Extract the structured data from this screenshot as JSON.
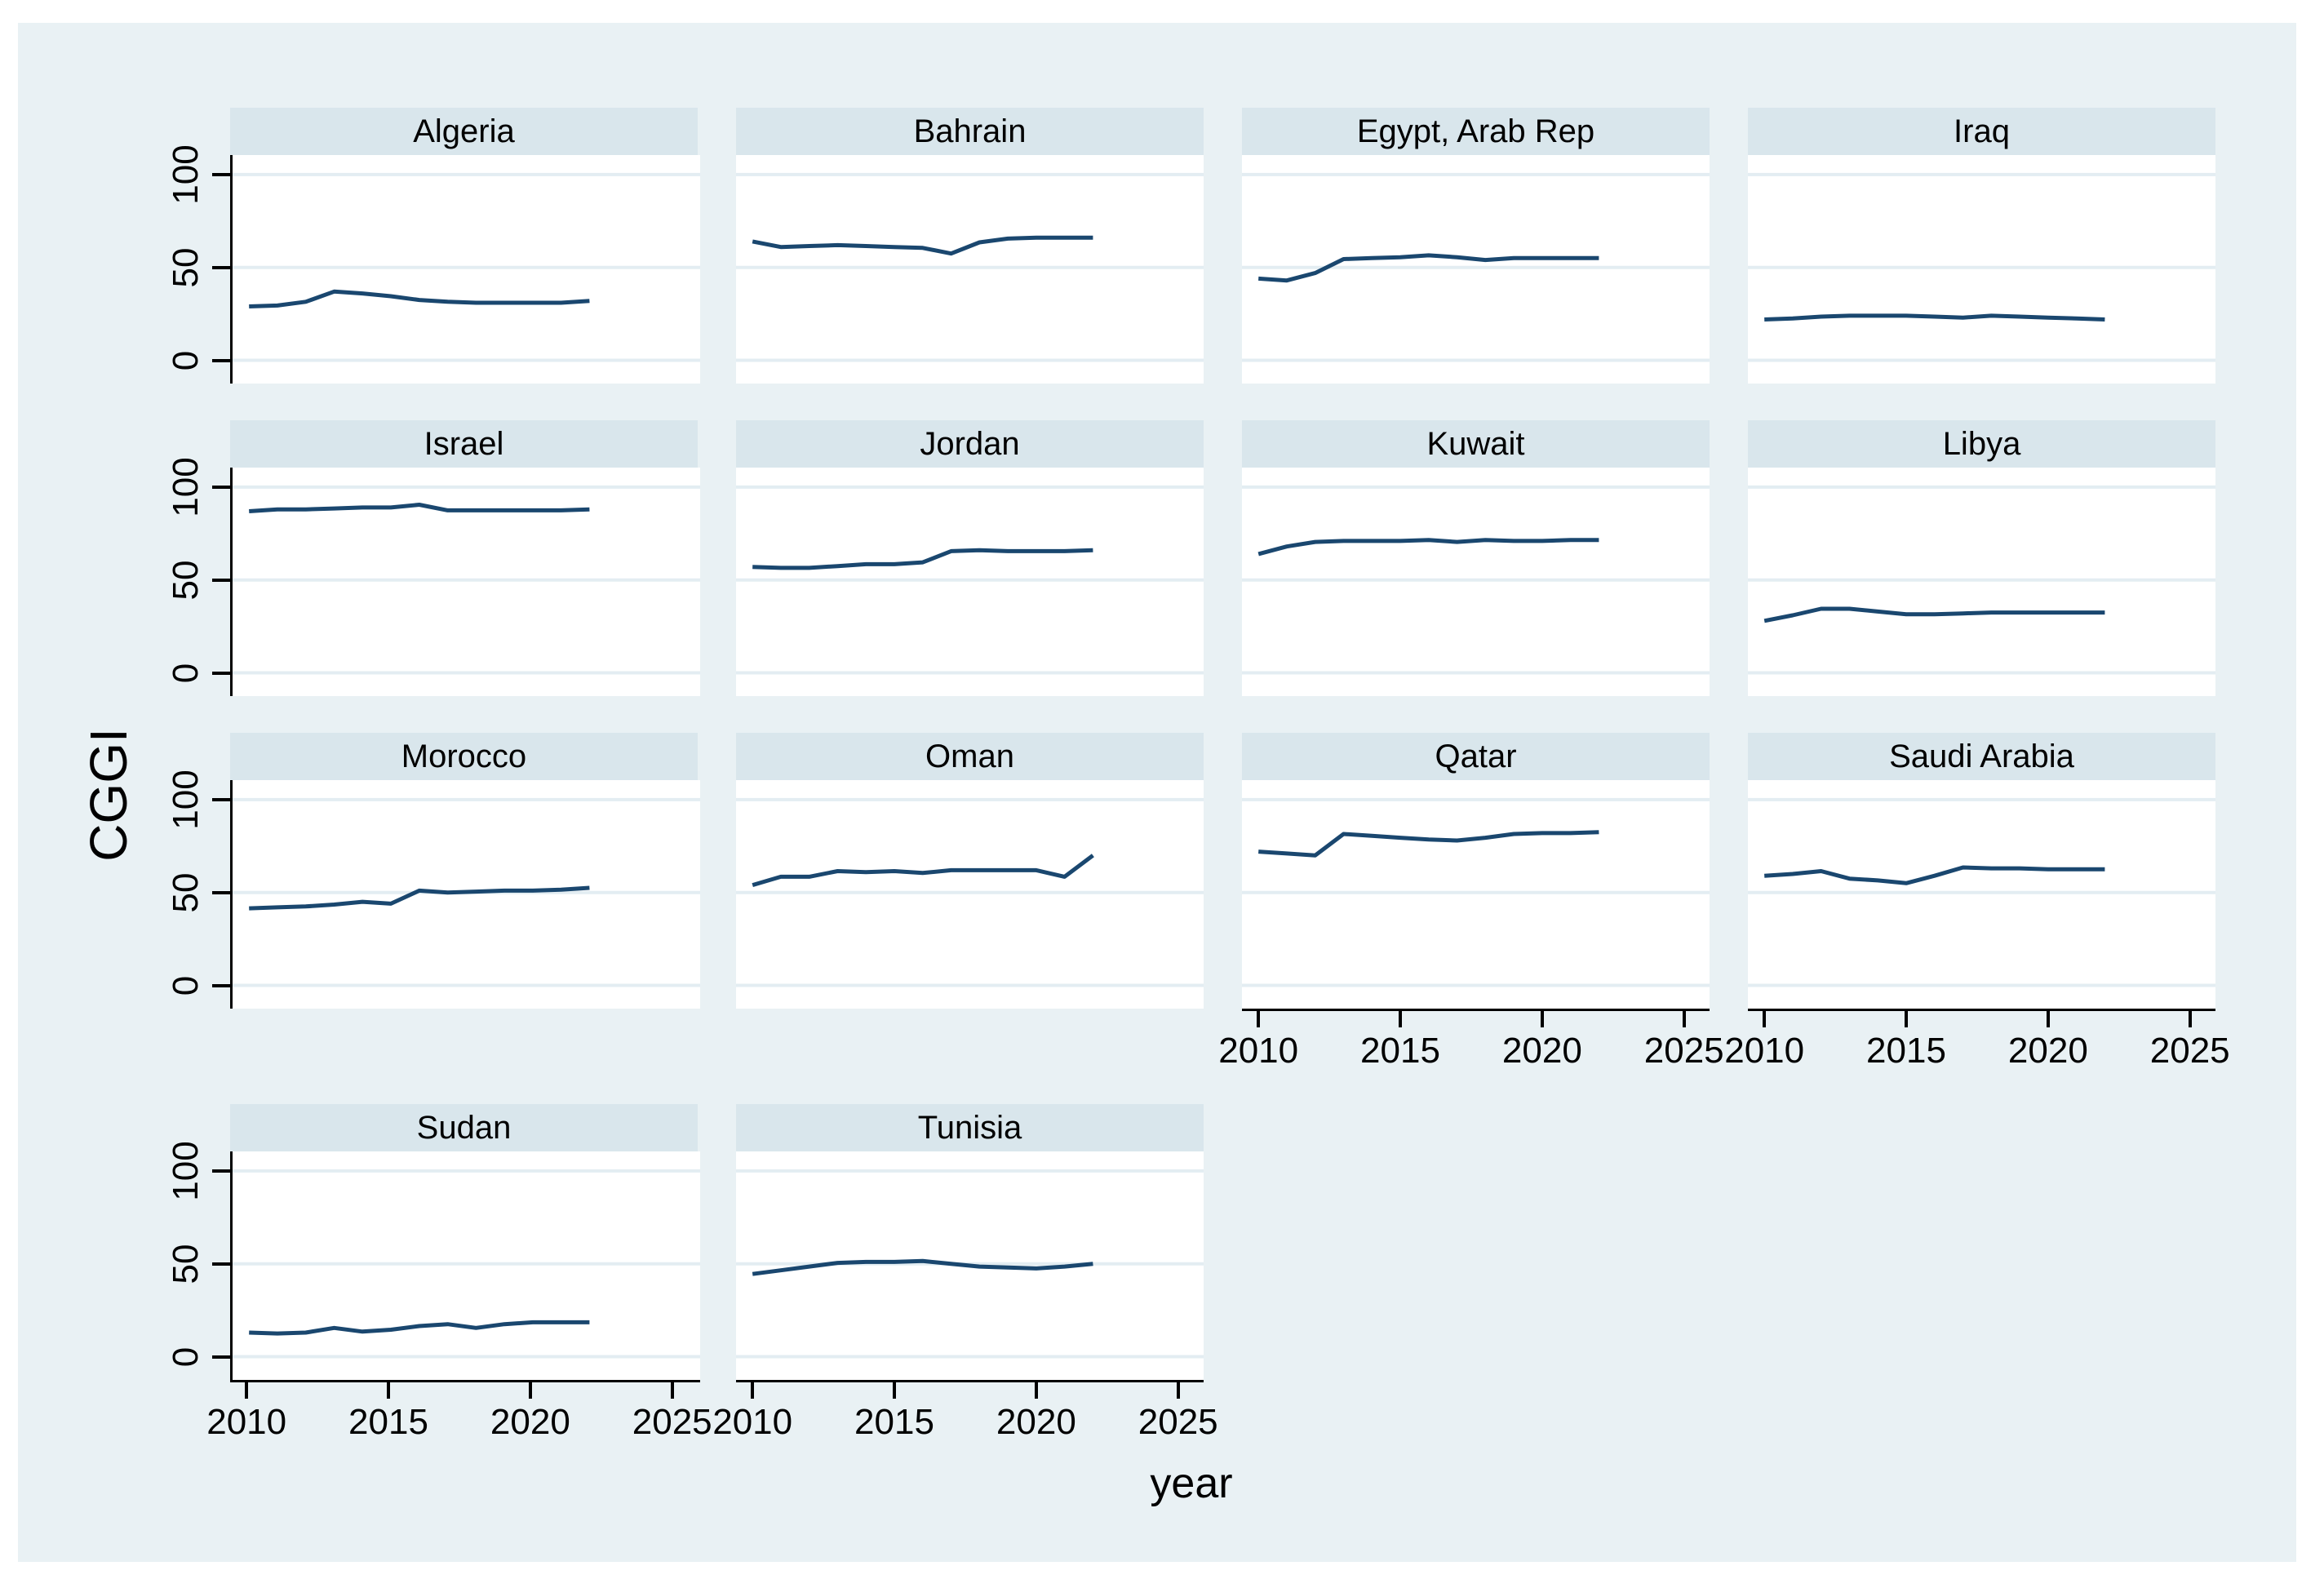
{
  "figure": {
    "ylabel": "CGGI",
    "xlabel": "year"
  },
  "colors": {
    "canvas": "#ffffff",
    "graph_region": "#e9f1f4",
    "title_strip": "#d9e6ec",
    "plot_background": "#ffffff",
    "gridline": "#e3edf2",
    "axis": "#000000",
    "line": "#1a476f"
  },
  "chart_data": {
    "type": "line",
    "facet_layout": "4 columns, row-major",
    "title": "",
    "xlabel": "year",
    "ylabel": "CGGI",
    "x": [
      2010,
      2011,
      2012,
      2013,
      2014,
      2015,
      2016,
      2017,
      2018,
      2019,
      2020,
      2021,
      2022
    ],
    "x_ticks": [
      2010,
      2015,
      2020,
      2025
    ],
    "y_ticks": [
      0,
      50,
      100
    ],
    "xlim": [
      2009.42,
      2025.9
    ],
    "ylim": [
      -12.5,
      110.5
    ],
    "grid": "horizontal gridlines at y ticks",
    "legend": "none",
    "panels": [
      {
        "title": "Algeria",
        "values": [
          29,
          29.5,
          31.5,
          37,
          36,
          34.5,
          32.5,
          31.5,
          31,
          31,
          31,
          31,
          32
        ]
      },
      {
        "title": "Bahrain",
        "values": [
          64,
          61,
          61.5,
          62,
          61.5,
          61,
          60.5,
          57.5,
          63.5,
          65.5,
          66,
          66,
          66
        ]
      },
      {
        "title": "Egypt, Arab Rep",
        "values": [
          44,
          43,
          47,
          54.5,
          55,
          55.5,
          56.5,
          55.5,
          54,
          55,
          55,
          55,
          55
        ]
      },
      {
        "title": "Iraq",
        "values": [
          22,
          22.5,
          23.5,
          24,
          24,
          24,
          23.5,
          23,
          24,
          23.5,
          23,
          22.5,
          22
        ]
      },
      {
        "title": "Israel",
        "values": [
          87,
          88,
          88,
          88.5,
          89,
          89,
          90.5,
          87.5,
          87.5,
          87.5,
          87.5,
          87.5,
          88
        ]
      },
      {
        "title": "Jordan",
        "values": [
          57,
          56.5,
          56.5,
          57.5,
          58.5,
          58.5,
          59.5,
          65.5,
          66,
          65.5,
          65.5,
          65.5,
          66
        ]
      },
      {
        "title": "Kuwait",
        "values": [
          64,
          68,
          70.5,
          71,
          71,
          71,
          71.5,
          70.5,
          71.5,
          71,
          71,
          71.5,
          71.5
        ]
      },
      {
        "title": "Libya",
        "values": [
          28,
          31,
          34.5,
          34.5,
          33,
          31.5,
          31.5,
          32,
          32.5,
          32.5,
          32.5,
          32.5,
          32.5
        ]
      },
      {
        "title": "Morocco",
        "values": [
          41.5,
          42,
          42.5,
          43.5,
          45,
          44,
          51,
          50,
          50.5,
          51,
          51,
          51.5,
          52.5
        ]
      },
      {
        "title": "Oman",
        "values": [
          54,
          58.5,
          58.5,
          61.5,
          61,
          61.5,
          60.5,
          62,
          62,
          62,
          62,
          58.5,
          70
        ]
      },
      {
        "title": "Qatar",
        "values": [
          72,
          71,
          70,
          81.5,
          80.5,
          79.5,
          78.5,
          78,
          79.5,
          81.5,
          82,
          82,
          82.5
        ]
      },
      {
        "title": "Saudi Arabia",
        "values": [
          59,
          60,
          61.5,
          57.5,
          56.5,
          55,
          59,
          63.5,
          63,
          63,
          62.5,
          62.5,
          62.5
        ]
      },
      {
        "title": "Sudan",
        "values": [
          13,
          12.5,
          13,
          15.5,
          13.5,
          14.5,
          16.5,
          17.5,
          15.5,
          17.5,
          18.5,
          18.5,
          18.5
        ]
      },
      {
        "title": "Tunisia",
        "values": [
          44.5,
          46.5,
          48.5,
          50.5,
          51,
          51,
          51.5,
          50,
          48.5,
          48,
          47.5,
          48.5,
          50
        ]
      }
    ]
  }
}
